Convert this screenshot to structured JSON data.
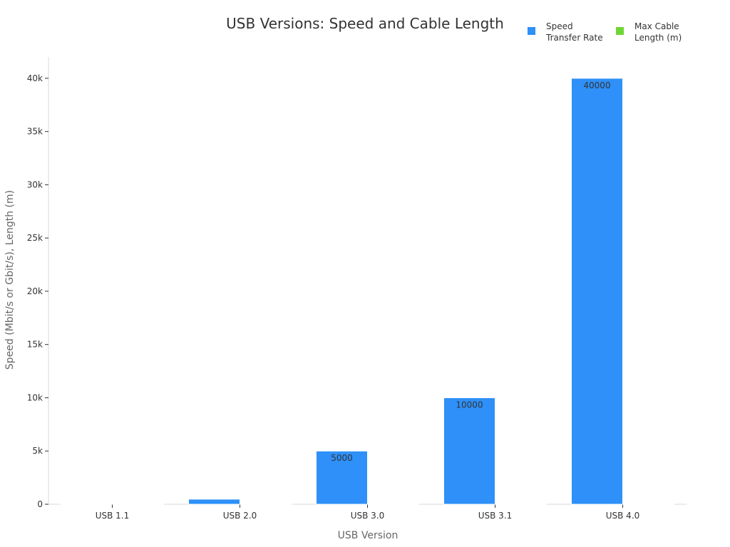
{
  "chart_data": {
    "type": "bar",
    "title": "USB Versions: Speed and Cable Length",
    "xlabel": "USB Version",
    "ylabel": "Speed (Mbit/s or Gbit/s), Length (m)",
    "categories": [
      "USB 1.1",
      "USB 2.0",
      "USB 3.0",
      "USB 3.1",
      "USB 4.0"
    ],
    "series": [
      {
        "name": "Speed Transfer Rate",
        "name_lines": [
          "Speed",
          "Transfer Rate"
        ],
        "color": "#2e90f8",
        "values": [
          12,
          480,
          5000,
          10000,
          40000
        ],
        "labels": [
          "",
          "",
          "5000",
          "10000",
          "40000"
        ]
      },
      {
        "name": "Max Cable Length (m)",
        "name_lines": [
          "Max Cable",
          "Length (m)"
        ],
        "color": "#6fd636",
        "values": [
          3,
          5,
          3,
          3,
          0.8
        ],
        "labels": [
          "",
          "",
          "",
          "",
          ""
        ]
      }
    ],
    "ylim": [
      0,
      42000
    ],
    "yticks": [
      0,
      5000,
      10000,
      15000,
      20000,
      25000,
      30000,
      35000,
      40000
    ],
    "ytick_labels": [
      "0",
      "5k",
      "10k",
      "15k",
      "20k",
      "25k",
      "30k",
      "35k",
      "40k"
    ],
    "grid": false,
    "legend_position": "top-right"
  }
}
